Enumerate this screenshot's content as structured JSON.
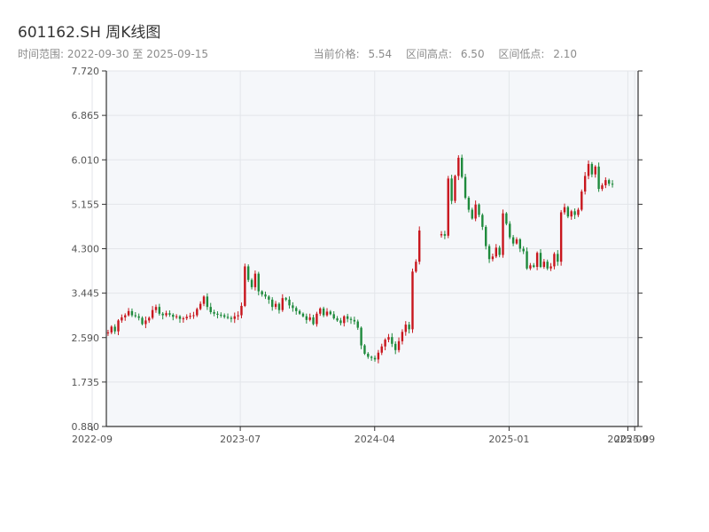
{
  "header": {
    "title": "601162.SH 周K线图",
    "range_label": "时间范围: 2022-09-30 至 2025-09-15",
    "stats": [
      {
        "label": "当前价格:",
        "value": "5.54"
      },
      {
        "label": "区间高点:",
        "value": "6.50"
      },
      {
        "label": "区间低点:",
        "value": "2.10"
      }
    ]
  },
  "colors": {
    "up": "#c8161d",
    "down": "#1e8a3c",
    "plot_bg": "#f5f7fa",
    "grid": "#e3e6ea",
    "axis": "#333333"
  },
  "chart_data": {
    "type": "candlestick",
    "title": "601162.SH 周K线图",
    "ylim": [
      0.88,
      7.72
    ],
    "yticks": [
      "0.880",
      "1.735",
      "2.590",
      "3.445",
      "4.300",
      "5.155",
      "6.010",
      "6.865",
      "7.720"
    ],
    "xlim": [
      "2022-09-30",
      "2025-09-15"
    ],
    "xticks": [
      {
        "date": "2022-09-01",
        "label": "2022-09"
      },
      {
        "date": "2023-07-01",
        "label": "2023-07"
      },
      {
        "date": "2024-04-01",
        "label": "2024-04"
      },
      {
        "date": "2025-01-01",
        "label": "2025-01"
      },
      {
        "date": "2025-09-01",
        "label": "2025-09"
      },
      {
        "date": "2025-09-15",
        "label": "2025-09"
      }
    ],
    "grid": true,
    "segments": [
      {
        "start": "2022-09-30",
        "prices": [
          2.69,
          2.8,
          2.71,
          2.92,
          2.98,
          3.02,
          3.1,
          3.02,
          3.0,
          2.97,
          2.85,
          2.92,
          2.97,
          3.12,
          3.18,
          3.05,
          3.02,
          3.06,
          3.03,
          2.99,
          3.0,
          2.95,
          2.96,
          2.99,
          3.01,
          3.02,
          3.14,
          3.24,
          3.38,
          3.18,
          3.08,
          3.05,
          3.03,
          3.02,
          2.99,
          2.97,
          2.95,
          3.0,
          3.02,
          3.2,
          3.96,
          3.7,
          3.56,
          3.82,
          3.48,
          3.42,
          3.38,
          3.32,
          3.18,
          3.24,
          3.12,
          3.35,
          3.32,
          3.21,
          3.16,
          3.1,
          3.05,
          3.0,
          2.93,
          2.98,
          2.85,
          3.05,
          3.15,
          3.02,
          3.09,
          3.04,
          2.96,
          2.92,
          2.87,
          3.0,
          2.95,
          2.93,
          2.9,
          2.78,
          2.44,
          2.28,
          2.22,
          2.2,
          2.17,
          2.3,
          2.42,
          2.55,
          2.6,
          2.47,
          2.35,
          2.52,
          2.7,
          2.84,
          2.75,
          3.86,
          4.05,
          4.65
        ]
      },
      {
        "start": "2024-08-12",
        "prices": [
          4.58,
          4.55,
          5.65,
          5.22,
          5.7,
          6.05,
          5.68,
          5.28,
          5.05,
          4.88,
          5.15,
          4.95,
          4.72,
          4.35,
          4.1,
          4.15,
          4.32,
          4.18,
          4.98,
          4.78,
          4.52,
          4.4,
          4.48,
          4.3,
          4.25,
          3.92,
          3.98,
          3.95,
          4.22,
          3.95,
          4.05,
          3.92,
          3.96,
          4.2,
          4.05,
          5.0,
          5.1,
          4.92,
          5.02,
          4.95,
          5.05,
          5.4,
          5.7,
          5.93,
          5.73,
          5.88,
          5.45,
          5.52,
          5.62,
          5.55,
          5.54
        ]
      }
    ]
  }
}
